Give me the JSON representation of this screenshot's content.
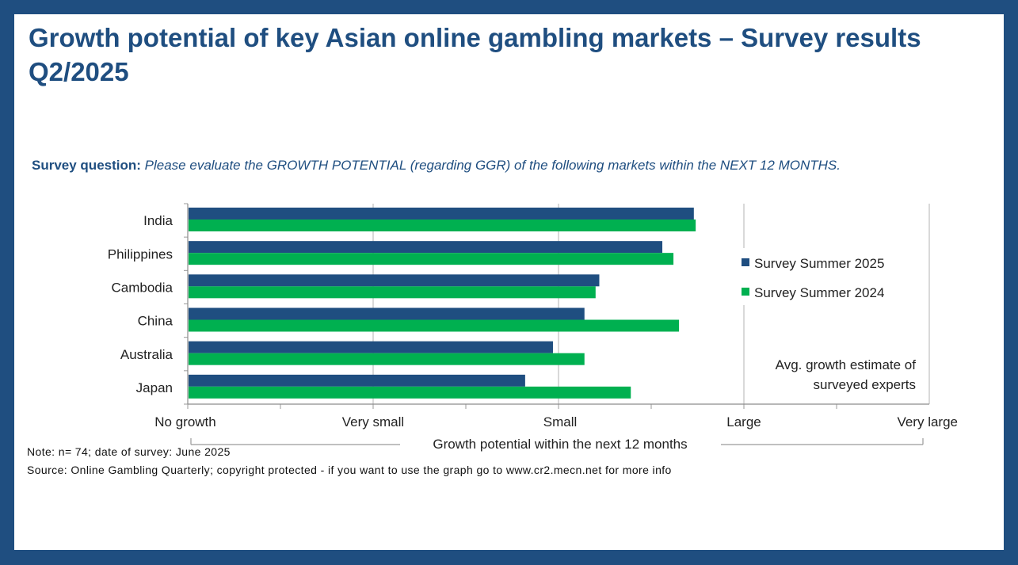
{
  "title_line1": "Growth potential of key Asian online gambling markets – Survey results",
  "title_line2": "Q2/2025",
  "question_label": "Survey question:",
  "question_text": "Please evaluate the GROWTH POTENTIAL (regarding GGR) of the following markets within the NEXT 12 MONTHS.",
  "note": "Note: n= 74; date of survey: June 2025",
  "source": "Source: Online Gambling Quarterly; copyright protected - if you want to use the graph go to www.cr2.mecn.net for more info",
  "colors": {
    "frame": "#1f4e80",
    "series_2025": "#1f4e80",
    "series_2024": "#00b050"
  },
  "chart_data": {
    "type": "bar",
    "orientation": "horizontal",
    "categories": [
      "India",
      "Philippines",
      "Cambodia",
      "China",
      "Australia",
      "Japan"
    ],
    "series": [
      {
        "name": "Survey Summer 2025",
        "values": [
          2.73,
          2.56,
          2.22,
          2.14,
          1.97,
          1.82
        ]
      },
      {
        "name": "Survey Summer 2024",
        "values": [
          2.74,
          2.62,
          2.2,
          2.65,
          2.14,
          2.39
        ]
      }
    ],
    "xlim": [
      0,
      4
    ],
    "x_tick_labels": [
      "No growth",
      "Very small",
      "Small",
      "Large",
      "Very large"
    ],
    "xlabel": "Growth potential within the next 12 months",
    "legend_position": "right",
    "annotation": [
      "Avg. growth estimate of",
      "surveyed experts"
    ],
    "grid": true
  }
}
